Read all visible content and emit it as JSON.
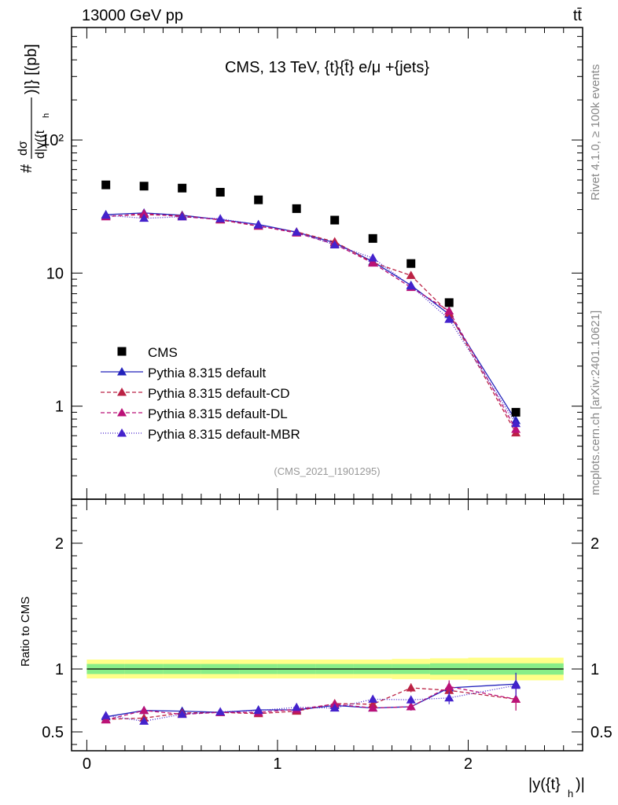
{
  "header": {
    "left": "13000 GeV pp",
    "right": "tt̄"
  },
  "side": {
    "rivet": "Rivet 4.1.0, ≥ 100k events",
    "site": "mcplots.cern.ch [arXiv:2401.10621]"
  },
  "chart_data": {
    "type": "line",
    "title": "CMS, 13 TeV, {t}{t̄} e/μ +{jets}",
    "analysis_id": "(CMS_2021_I1901295)",
    "xlabel": "|y({t}h)|",
    "ylabel": "# dσ / d|y({t_h)|} [(pb]",
    "ratio_ylabel": "Ratio to CMS",
    "xlim": [
      -0.08,
      2.6
    ],
    "ylim_log": [
      0.2,
      700
    ],
    "ratio_ylim": [
      0.35,
      2.35
    ],
    "x_ticks": [
      "0",
      "1",
      "2"
    ],
    "y_ticks": [
      "1",
      "10",
      "10²"
    ],
    "ratio_ticks": [
      "0.5",
      "1",
      "2"
    ],
    "bin_edges": [
      0,
      0.2,
      0.4,
      0.6,
      0.8,
      1.0,
      1.2,
      1.4,
      1.6,
      1.8,
      2.0,
      2.5
    ],
    "x": [
      0.1,
      0.3,
      0.5,
      0.7,
      0.9,
      1.1,
      1.3,
      1.5,
      1.7,
      1.9,
      2.25
    ],
    "data": {
      "name": "CMS",
      "values": [
        46,
        45,
        43.5,
        40.5,
        35.5,
        30.5,
        25,
        18.2,
        11.8,
        6.0,
        0.9
      ],
      "band_inner": [
        0.08,
        0.08,
        0.08,
        0.08,
        0.08,
        0.08,
        0.08,
        0.08,
        0.08,
        0.09,
        0.09
      ],
      "band_outer": [
        0.15,
        0.15,
        0.15,
        0.15,
        0.15,
        0.15,
        0.15,
        0.15,
        0.16,
        0.17,
        0.18
      ]
    },
    "series": [
      {
        "name": "Pythia 8.315 default",
        "color": "#2222bb",
        "dash": "",
        "values": [
          27.5,
          28.3,
          27.2,
          25.2,
          23.2,
          20.3,
          16.9,
          12.2,
          8.1,
          4.9,
          0.78
        ],
        "ratio": [
          0.62,
          0.67,
          0.665,
          0.655,
          0.675,
          0.675,
          0.71,
          0.69,
          0.7,
          0.85,
          0.88
        ],
        "ratio_err": [
          0.02,
          0.02,
          0.02,
          0.02,
          0.02,
          0.02,
          0.02,
          0.025,
          0.03,
          0.05,
          0.09
        ]
      },
      {
        "name": "Pythia 8.315 default-CD",
        "color": "#bb2244",
        "dash": "5,3",
        "values": [
          26.8,
          27.5,
          27.0,
          25.1,
          22.5,
          20.4,
          17.2,
          12.0,
          9.6,
          5.0,
          0.63
        ],
        "ratio": [
          0.6,
          0.61,
          0.65,
          0.655,
          0.645,
          0.665,
          0.725,
          0.72,
          0.85,
          0.83,
          0.76
        ],
        "ratio_err": [
          0.02,
          0.02,
          0.02,
          0.02,
          0.02,
          0.02,
          0.02,
          0.025,
          0.035,
          0.05,
          0.09
        ]
      },
      {
        "name": "Pythia 8.315 default-DL",
        "color": "#bb1177",
        "dash": "5,3",
        "values": [
          26.5,
          28.0,
          26.5,
          25.3,
          22.6,
          20.0,
          16.5,
          11.9,
          7.8,
          5.2,
          0.67
        ],
        "ratio": [
          0.595,
          0.67,
          0.64,
          0.655,
          0.655,
          0.68,
          0.72,
          0.69,
          0.7,
          0.86,
          0.76
        ],
        "ratio_err": [
          0.02,
          0.02,
          0.02,
          0.02,
          0.02,
          0.02,
          0.02,
          0.025,
          0.03,
          0.05,
          0.09
        ]
      },
      {
        "name": "Pythia 8.315 default-MBR",
        "color": "#4422cc",
        "dash": "1,2",
        "values": [
          27.2,
          25.8,
          26.5,
          25.6,
          23.0,
          20.3,
          16.3,
          13.0,
          8.0,
          4.5,
          0.74
        ],
        "ratio": [
          0.63,
          0.585,
          0.64,
          0.66,
          0.67,
          0.695,
          0.69,
          0.76,
          0.755,
          0.77,
          0.87
        ],
        "ratio_err": [
          0.02,
          0.02,
          0.02,
          0.02,
          0.02,
          0.02,
          0.02,
          0.025,
          0.03,
          0.05,
          0.09
        ]
      }
    ],
    "legend_position": "lower-left",
    "colors": {
      "band_inner": "#88ee88",
      "band_outer": "#ffff88",
      "data_marker": "#000000"
    }
  }
}
